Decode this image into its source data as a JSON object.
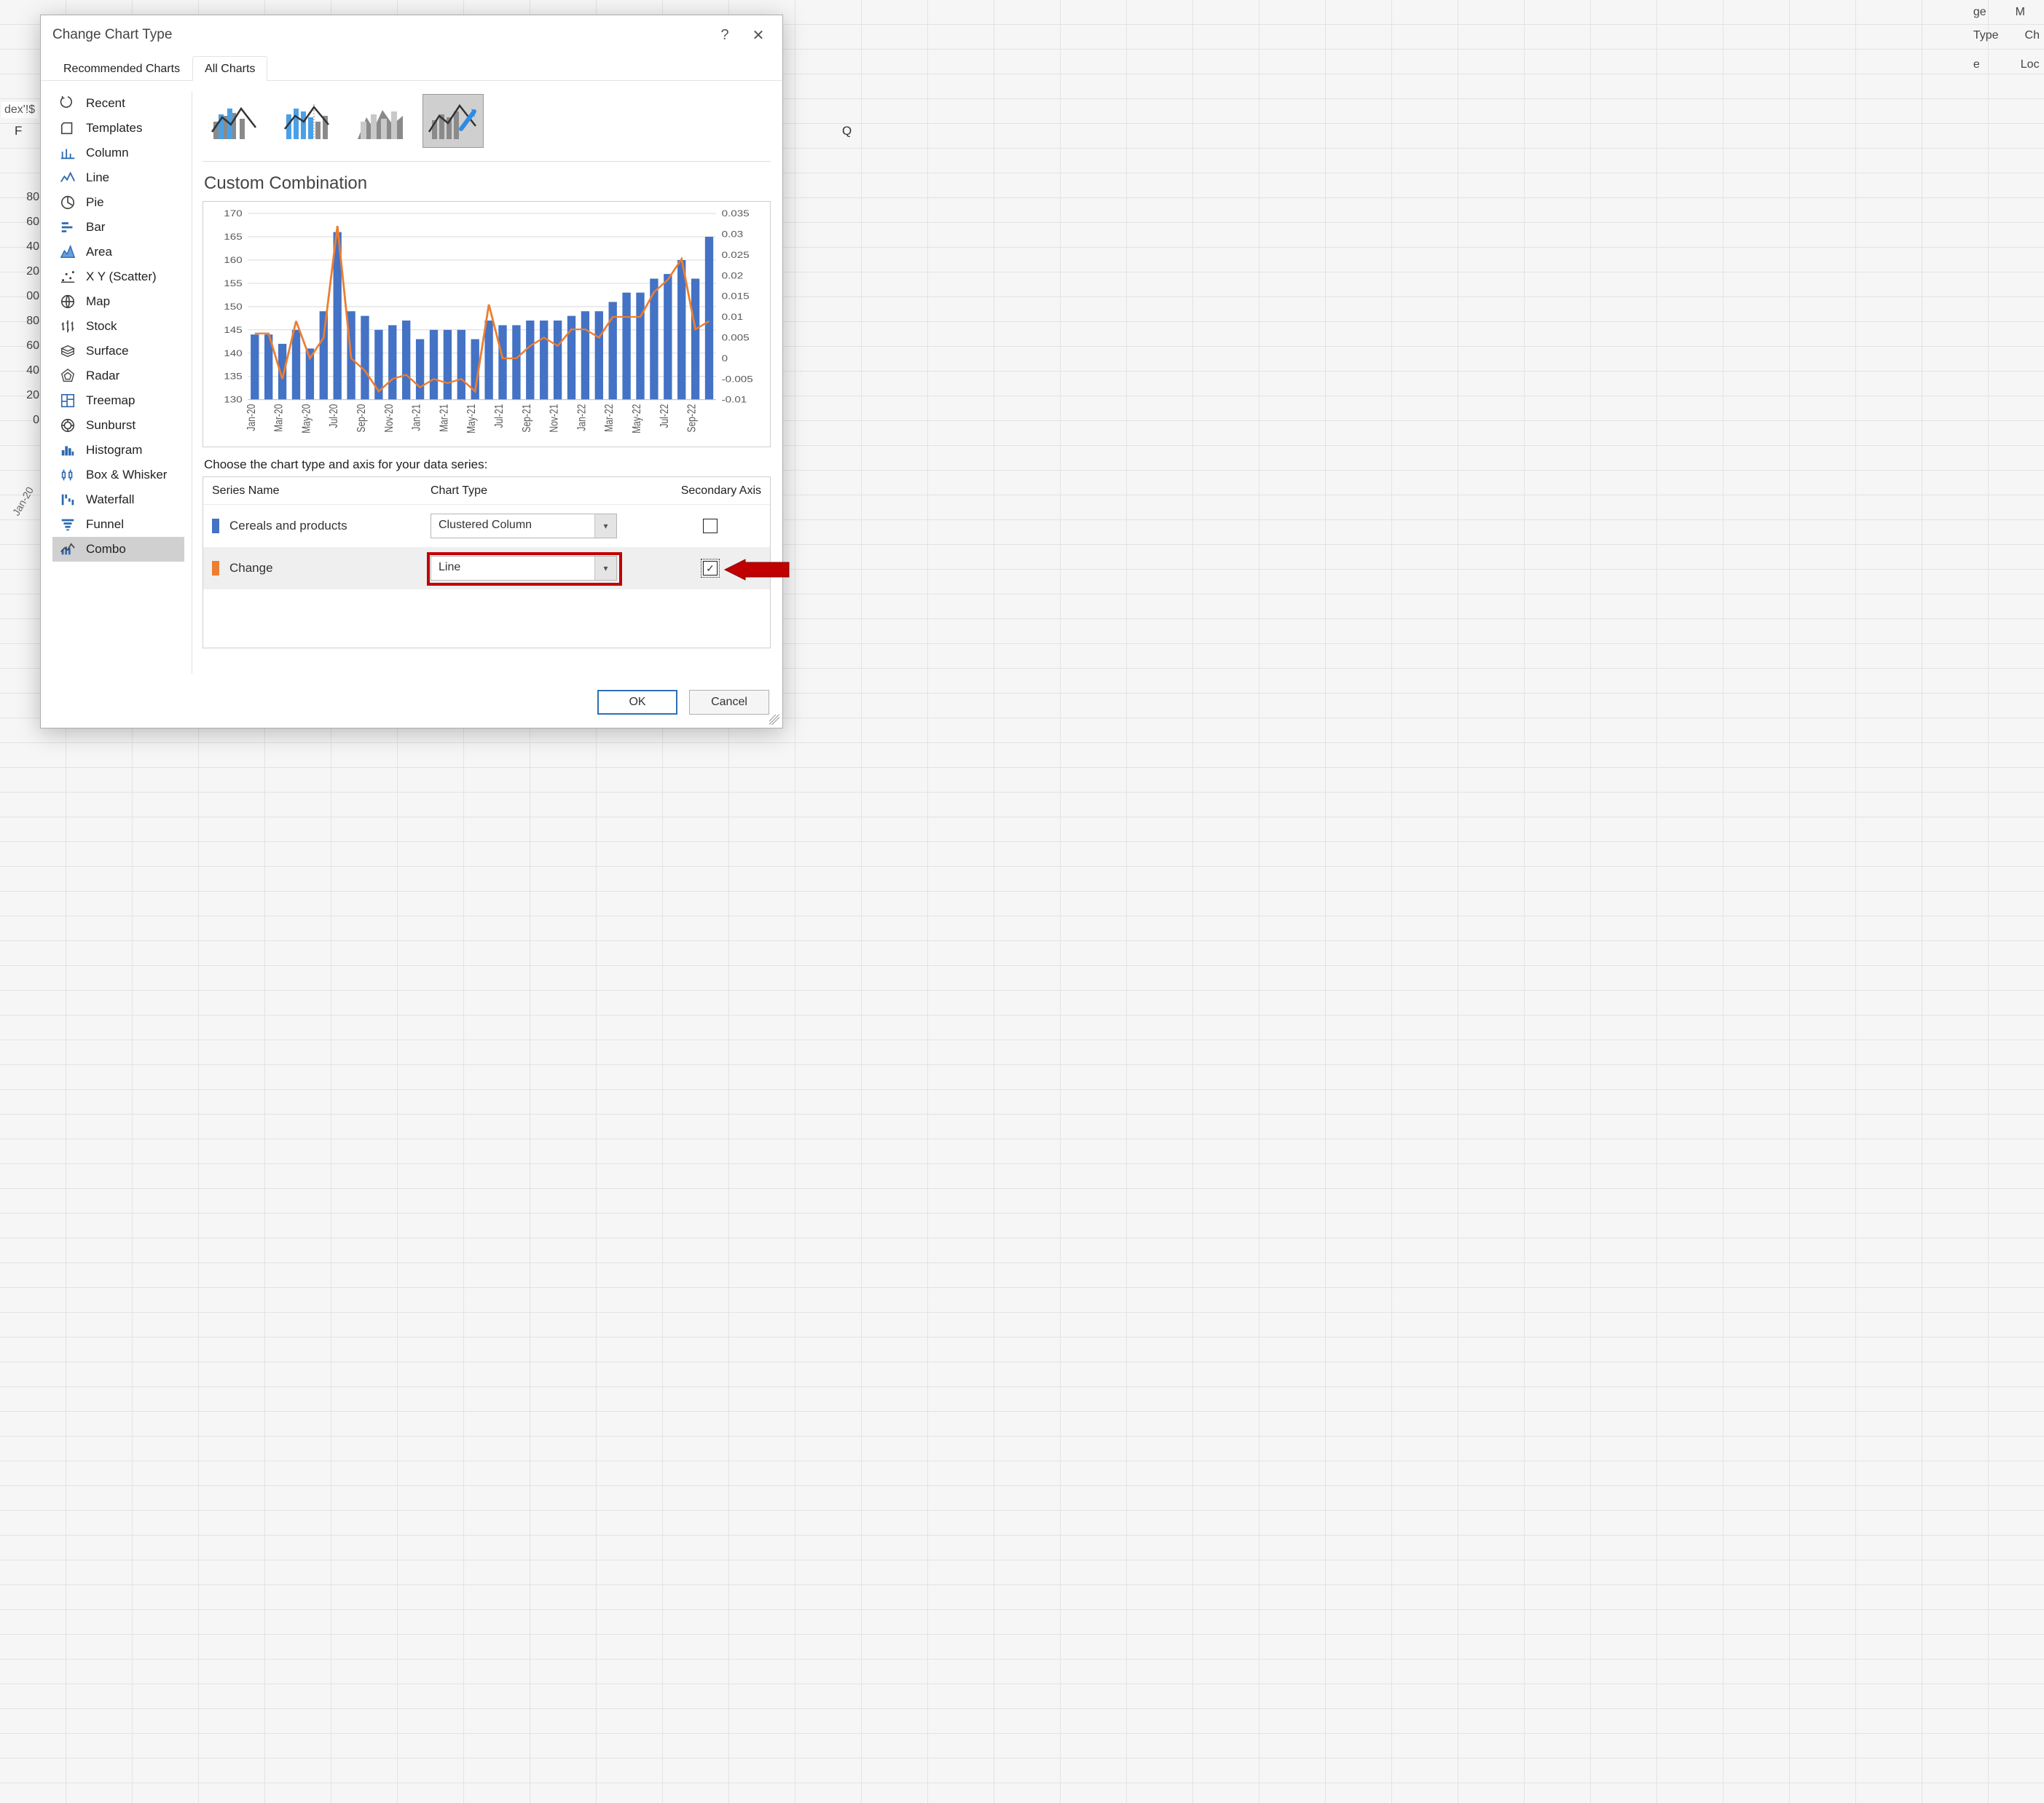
{
  "dialog": {
    "title": "Change Chart Type",
    "tabs": [
      "Recommended Charts",
      "All Charts"
    ],
    "active_tab": 1,
    "help_tooltip": "?",
    "close_tooltip": "✕"
  },
  "categories": [
    "Recent",
    "Templates",
    "Column",
    "Line",
    "Pie",
    "Bar",
    "Area",
    "X Y (Scatter)",
    "Map",
    "Stock",
    "Surface",
    "Radar",
    "Treemap",
    "Sunburst",
    "Histogram",
    "Box & Whisker",
    "Waterfall",
    "Funnel",
    "Combo"
  ],
  "selected_category_index": 18,
  "combo_styles_count": 4,
  "selected_style_index": 3,
  "section_title": "Custom Combination",
  "choose_label": "Choose the chart type and axis for your data series:",
  "series_headers": {
    "name": "Series Name",
    "type": "Chart Type",
    "axis": "Secondary Axis"
  },
  "series": [
    {
      "name": "Cereals and products",
      "chart_type": "Clustered Column",
      "color": "#4472c4",
      "secondary_axis": false
    },
    {
      "name": "Change",
      "chart_type": "Line",
      "color": "#ed7d31",
      "secondary_axis": true
    }
  ],
  "buttons": {
    "ok": "OK",
    "cancel": "Cancel"
  },
  "preview": {
    "y1_ticks": [
      130,
      135,
      140,
      145,
      150,
      155,
      160,
      165,
      170
    ],
    "y1_lim": [
      130,
      170
    ],
    "y2_ticks": [
      -0.01,
      -0.005,
      0,
      0.005,
      0.01,
      0.015,
      0.02,
      0.025,
      0.03,
      0.035
    ],
    "y2_lim": [
      -0.01,
      0.035
    ],
    "x_labels": [
      "Jan-20",
      "Mar-20",
      "May-20",
      "Jul-20",
      "Sep-20",
      "Nov-20",
      "Jan-21",
      "Mar-21",
      "May-21",
      "Jul-21",
      "Sep-21",
      "Nov-21",
      "Jan-22",
      "Mar-22",
      "May-22",
      "Jul-22",
      "Sep-22"
    ],
    "bar_values": [
      144,
      144,
      142,
      145,
      141,
      149,
      166,
      149,
      148,
      145,
      146,
      147,
      143,
      145,
      145,
      145,
      143,
      147,
      146,
      146,
      147,
      147,
      147,
      148,
      149,
      149,
      151,
      153,
      153,
      156,
      157,
      160,
      156,
      165
    ],
    "line_values": [
      0.006,
      0.006,
      -0.005,
      0.009,
      0.0,
      0.005,
      0.032,
      0.0,
      -0.003,
      -0.008,
      -0.005,
      -0.004,
      -0.007,
      -0.005,
      -0.006,
      -0.005,
      -0.008,
      0.013,
      0.0,
      0.0,
      0.003,
      0.005,
      0.003,
      0.007,
      0.007,
      0.005,
      0.01,
      0.01,
      0.01,
      0.016,
      0.019,
      0.024,
      0.007,
      0.009
    ],
    "bar_color": "#4472c4",
    "line_color": "#ed7d31",
    "grid_color": "#d9d9d9",
    "tick_font_size": 12,
    "line_width": 2.2
  },
  "bg": {
    "col_F": "F",
    "col_Q": "Q",
    "left_axis": [
      "80",
      "60",
      "40",
      "20",
      "00",
      "80",
      "60",
      "40",
      "20",
      "0"
    ],
    "formula_fragment": "dex'!$",
    "jan20": "Jan-20",
    "ribbon_ge": "ge",
    "ribbon_M": "M",
    "ribbon_Type": "Type",
    "ribbon_Ch": "Ch",
    "ribbon_e": "e",
    "ribbon_Loc": "Loc"
  },
  "colors": {
    "highlight": "#c00000",
    "selection_bg": "#d0d0d0"
  }
}
